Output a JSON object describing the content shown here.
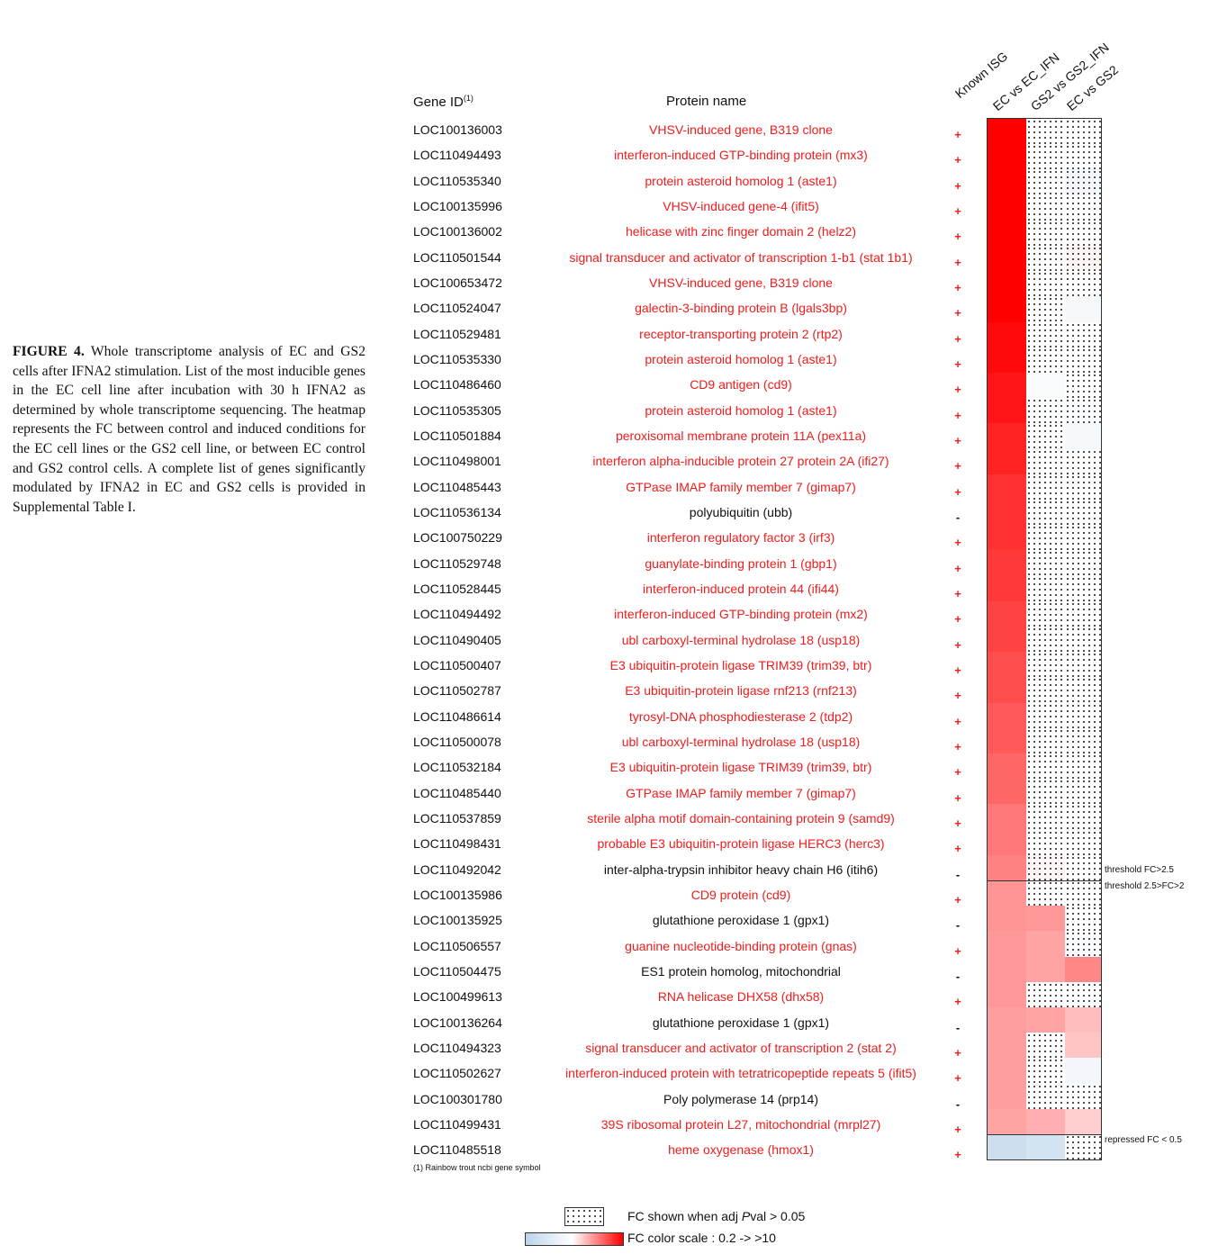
{
  "caption": {
    "label": "FIGURE 4.",
    "text": "Whole transcriptome analysis of EC and GS2 cells after IFNA2 stimulation. List of the most inducible genes in the EC cell line after incubation with 30 h IFNA2 as determined by whole transcriptome sequencing. The heatmap represents the FC between control and induced conditions for the EC cell lines or the GS2 cell line, or between EC control and GS2 control cells. A complete list of genes significantly modulated by IFNA2 in EC and GS2 cells is provided in Supplemental Table I."
  },
  "table": {
    "gene_id_header": "Gene ID",
    "gene_id_sup": "(1)",
    "protein_header": "Protein name",
    "column_headers": [
      "Known ISG",
      "EC vs EC_IFN",
      "GS2 vs GS2_IFN",
      "EC vs GS2"
    ],
    "footnote": "(1) Rainbow trout ncbi gene symbol"
  },
  "colors": {
    "isg": "#ee1c1c",
    "scale_low": "#bcd4ea",
    "scale_mid": "#ffffff",
    "scale_high": "#ff0000"
  },
  "chart_data": {
    "type": "heatmap",
    "columns": [
      "EC vs EC_IFN",
      "GS2 vs GS2_IFN",
      "EC vs GS2"
    ],
    "color_scale": {
      "min": 0.2,
      "max": ">10",
      "low_color": "#bcd4ea",
      "high_color": "#ff0000"
    },
    "notes": "FC values estimated from color; 'ns' = FC shown when adj Pval > 0.05 (dotted pattern)",
    "rows": [
      {
        "gene": "LOC100136003",
        "protein": "VHSV-induced gene, B319 clone",
        "isg": true,
        "ec": 10,
        "gs2": 1.0,
        "gs2_ns": true,
        "ecgs2": 1.0,
        "ecgs2_ns": true
      },
      {
        "gene": "LOC110494493",
        "protein": "interferon-induced GTP-binding protein (mx3)",
        "isg": true,
        "ec": 10,
        "gs2": 1.0,
        "gs2_ns": true,
        "ecgs2": 1.0,
        "ecgs2_ns": true
      },
      {
        "gene": "LOC110535340",
        "protein": "protein asteroid homolog 1 (aste1)",
        "isg": true,
        "ec": 10,
        "gs2": 1.0,
        "gs2_ns": true,
        "ecgs2": 0.75,
        "ecgs2_ns": true
      },
      {
        "gene": "LOC100135996",
        "protein": "VHSV-induced gene-4 (ifit5)",
        "isg": true,
        "ec": 10,
        "gs2": 1.0,
        "gs2_ns": true,
        "ecgs2": 1.0,
        "ecgs2_ns": true
      },
      {
        "gene": "LOC100136002",
        "protein": "helicase with zinc finger domain 2 (helz2)",
        "isg": true,
        "ec": 10,
        "gs2": 1.0,
        "gs2_ns": true,
        "ecgs2": 1.0,
        "ecgs2_ns": true
      },
      {
        "gene": "LOC110501544",
        "protein": "signal transducer and activator of transcription 1-b1 (stat 1b1)",
        "isg": true,
        "ec": 10,
        "gs2": 1.0,
        "gs2_ns": true,
        "ecgs2": 1.05,
        "ecgs2_ns": true
      },
      {
        "gene": "LOC100653472",
        "protein": "VHSV-induced gene, B319 clone",
        "isg": true,
        "ec": 10,
        "gs2": 1.0,
        "gs2_ns": true,
        "ecgs2": 1.0,
        "ecgs2_ns": true
      },
      {
        "gene": "LOC110524047",
        "protein": "galectin-3-binding protein B (lgals3bp)",
        "isg": true,
        "ec": 10,
        "gs2": 1.0,
        "gs2_ns": true,
        "ecgs2": 0.8,
        "ecgs2_ns": false
      },
      {
        "gene": "LOC110529481",
        "protein": "receptor-transporting protein 2 (rtp2)",
        "isg": true,
        "ec": 9,
        "gs2": 1.0,
        "gs2_ns": true,
        "ecgs2": 1.0,
        "ecgs2_ns": true
      },
      {
        "gene": "LOC110535330",
        "protein": "protein asteroid homolog 1 (aste1)",
        "isg": true,
        "ec": 9,
        "gs2": 1.0,
        "gs2_ns": true,
        "ecgs2": 1.0,
        "ecgs2_ns": true
      },
      {
        "gene": "LOC110486460",
        "protein": "CD9 antigen (cd9)",
        "isg": true,
        "ec": 8,
        "gs2": 0.85,
        "gs2_ns": false,
        "ecgs2": 1.0,
        "ecgs2_ns": true
      },
      {
        "gene": "LOC110535305",
        "protein": "protein asteroid homolog 1 (aste1)",
        "isg": true,
        "ec": 8,
        "gs2": 0.95,
        "gs2_ns": true,
        "ecgs2": 0.9,
        "ecgs2_ns": true
      },
      {
        "gene": "LOC110501884",
        "protein": "peroxisomal membrane protein 11A (pex11a)",
        "isg": true,
        "ec": 7,
        "gs2": 1.0,
        "gs2_ns": true,
        "ecgs2": 0.8,
        "ecgs2_ns": false
      },
      {
        "gene": "LOC110498001",
        "protein": "interferon alpha-inducible protein 27 protein 2A (ifi27)",
        "isg": true,
        "ec": 7,
        "gs2": 1.0,
        "gs2_ns": true,
        "ecgs2": 1.0,
        "ecgs2_ns": true
      },
      {
        "gene": "LOC110485443",
        "protein": "GTPase IMAP family member 7 (gimap7)",
        "isg": true,
        "ec": 6,
        "gs2": 1.0,
        "gs2_ns": true,
        "ecgs2": 1.0,
        "ecgs2_ns": true
      },
      {
        "gene": "LOC110536134",
        "protein": "polyubiquitin (ubb)",
        "isg": false,
        "ec": 6,
        "gs2": 1.0,
        "gs2_ns": true,
        "ecgs2": 1.0,
        "ecgs2_ns": true
      },
      {
        "gene": "LOC100750229",
        "protein": "interferon regulatory factor 3 (irf3)",
        "isg": true,
        "ec": 6,
        "gs2": 1.0,
        "gs2_ns": true,
        "ecgs2": 1.0,
        "ecgs2_ns": true
      },
      {
        "gene": "LOC110529748",
        "protein": "guanylate-binding protein 1 (gbp1)",
        "isg": true,
        "ec": 5.5,
        "gs2": 1.0,
        "gs2_ns": true,
        "ecgs2": 1.0,
        "ecgs2_ns": true
      },
      {
        "gene": "LOC110528445",
        "protein": "interferon-induced protein 44 (ifi44)",
        "isg": true,
        "ec": 5.5,
        "gs2": 1.0,
        "gs2_ns": true,
        "ecgs2": 1.0,
        "ecgs2_ns": true
      },
      {
        "gene": "LOC110494492",
        "protein": "interferon-induced GTP-binding protein (mx2)",
        "isg": true,
        "ec": 5,
        "gs2": 1.0,
        "gs2_ns": true,
        "ecgs2": 1.0,
        "ecgs2_ns": true
      },
      {
        "gene": "LOC110490405",
        "protein": "ubl carboxyl-terminal hydrolase 18 (usp18)",
        "isg": true,
        "ec": 5,
        "gs2": 1.0,
        "gs2_ns": true,
        "ecgs2": 1.0,
        "ecgs2_ns": true
      },
      {
        "gene": "LOC110500407",
        "protein": "E3 ubiquitin-protein ligase TRIM39 (trim39, btr)",
        "isg": true,
        "ec": 4.5,
        "gs2": 1.0,
        "gs2_ns": true,
        "ecgs2": 1.0,
        "ecgs2_ns": true
      },
      {
        "gene": "LOC110502787",
        "protein": "E3 ubiquitin-protein ligase rnf213 (rnf213)",
        "isg": true,
        "ec": 4.5,
        "gs2": 1.0,
        "gs2_ns": true,
        "ecgs2": 1.0,
        "ecgs2_ns": true
      },
      {
        "gene": "LOC110486614",
        "protein": "tyrosyl-DNA phosphodiesterase 2 (tdp2)",
        "isg": true,
        "ec": 4,
        "gs2": 1.0,
        "gs2_ns": true,
        "ecgs2": 1.0,
        "ecgs2_ns": true
      },
      {
        "gene": "LOC110500078",
        "protein": "ubl carboxyl-terminal hydrolase 18 (usp18)",
        "isg": true,
        "ec": 4,
        "gs2": 1.0,
        "gs2_ns": true,
        "ecgs2": 1.0,
        "ecgs2_ns": true
      },
      {
        "gene": "LOC110532184",
        "protein": "E3 ubiquitin-protein ligase TRIM39 (trim39, btr)",
        "isg": true,
        "ec": 3.5,
        "gs2": 1.0,
        "gs2_ns": true,
        "ecgs2": 1.0,
        "ecgs2_ns": true
      },
      {
        "gene": "LOC110485440",
        "protein": "GTPase IMAP family member 7 (gimap7)",
        "isg": true,
        "ec": 3.5,
        "gs2": 0.95,
        "gs2_ns": true,
        "ecgs2": 1.0,
        "ecgs2_ns": true
      },
      {
        "gene": "LOC110537859",
        "protein": "sterile alpha motif domain-containing protein 9 (samd9)",
        "isg": true,
        "ec": 3,
        "gs2": 1.0,
        "gs2_ns": true,
        "ecgs2": 1.0,
        "ecgs2_ns": true
      },
      {
        "gene": "LOC110498431",
        "protein": "probable E3 ubiquitin-protein ligase HERC3 (herc3)",
        "isg": true,
        "ec": 3,
        "gs2": 1.0,
        "gs2_ns": true,
        "ecgs2": 1.0,
        "ecgs2_ns": true
      },
      {
        "gene": "LOC110492042",
        "protein": "inter-alpha-trypsin inhibitor heavy chain H6 (itih6)",
        "isg": false,
        "ec": 2.7,
        "gs2": 1.05,
        "gs2_ns": true,
        "ecgs2": 1.0,
        "ecgs2_ns": true
      },
      {
        "gene": "LOC100135986",
        "protein": "CD9 protein (cd9)",
        "isg": true,
        "ec": 2.3,
        "gs2": 1.0,
        "gs2_ns": true,
        "ecgs2": 1.0,
        "ecgs2_ns": true
      },
      {
        "gene": "LOC100135925",
        "protein": "glutathione peroxidase 1 (gpx1)",
        "isg": false,
        "ec": 2.3,
        "gs2": 2.2,
        "gs2_ns": false,
        "ecgs2": 1.0,
        "ecgs2_ns": true
      },
      {
        "gene": "LOC110506557",
        "protein": "guanine nucleotide-binding protein (gnas)",
        "isg": true,
        "ec": 2.2,
        "gs2": 2.0,
        "gs2_ns": false,
        "ecgs2": 0.9,
        "ecgs2_ns": true
      },
      {
        "gene": "LOC110504475",
        "protein": "ES1 protein homolog, mitochondrial",
        "isg": false,
        "ec": 2.2,
        "gs2": 2.0,
        "gs2_ns": false,
        "ecgs2": 2.6,
        "ecgs2_ns": false
      },
      {
        "gene": "LOC100499613",
        "protein": "RNA helicase DHX58 (dhx58)",
        "isg": true,
        "ec": 2.2,
        "gs2": 1.0,
        "gs2_ns": true,
        "ecgs2": 1.0,
        "ecgs2_ns": true
      },
      {
        "gene": "LOC100136264",
        "protein": "glutathione peroxidase 1 (gpx1)",
        "isg": false,
        "ec": 2.1,
        "gs2": 2.0,
        "gs2_ns": false,
        "ecgs2": 1.6,
        "ecgs2_ns": false
      },
      {
        "gene": "LOC110494323",
        "protein": "signal transducer and activator of transcription 2 (stat 2)",
        "isg": true,
        "ec": 2.1,
        "gs2": 1.0,
        "gs2_ns": true,
        "ecgs2": 1.5,
        "ecgs2_ns": false
      },
      {
        "gene": "LOC110502627",
        "protein": "interferon-induced protein with tetratricopeptide repeats 5 (ifit5)",
        "isg": true,
        "ec": 2.1,
        "gs2": 1.0,
        "gs2_ns": true,
        "ecgs2": 0.75,
        "ecgs2_ns": false
      },
      {
        "gene": "LOC100301780",
        "protein": "Poly polymerase 14 (prp14)",
        "isg": false,
        "ec": 2.1,
        "gs2": 1.0,
        "gs2_ns": true,
        "ecgs2": 1.0,
        "ecgs2_ns": true
      },
      {
        "gene": "LOC110499431",
        "protein": "39S ribosomal protein L27, mitochondrial (mrpl27)",
        "isg": true,
        "ec": 2.0,
        "gs2": 1.8,
        "gs2_ns": false,
        "ecgs2": 1.4,
        "ecgs2_ns": false
      },
      {
        "gene": "LOC110485518",
        "protein": "heme oxygenase (hmox1)",
        "isg": true,
        "ec": 0.3,
        "gs2": 0.35,
        "gs2_ns": false,
        "ecgs2": 1.0,
        "ecgs2_ns": true
      }
    ],
    "thresholds": [
      {
        "label": "threshold FC>2.5",
        "after_row": 30
      },
      {
        "label": "threshold 2.5>FC>2",
        "after_row": 30
      },
      {
        "label": "repressed FC < 0.5",
        "after_row": 40
      }
    ]
  },
  "legend": {
    "dotted_label": "FC shown when adj ",
    "dotted_pval": "P",
    "dotted_label2": "val > 0.05",
    "scale_label": "FC color scale : 0.2 -> >10"
  }
}
